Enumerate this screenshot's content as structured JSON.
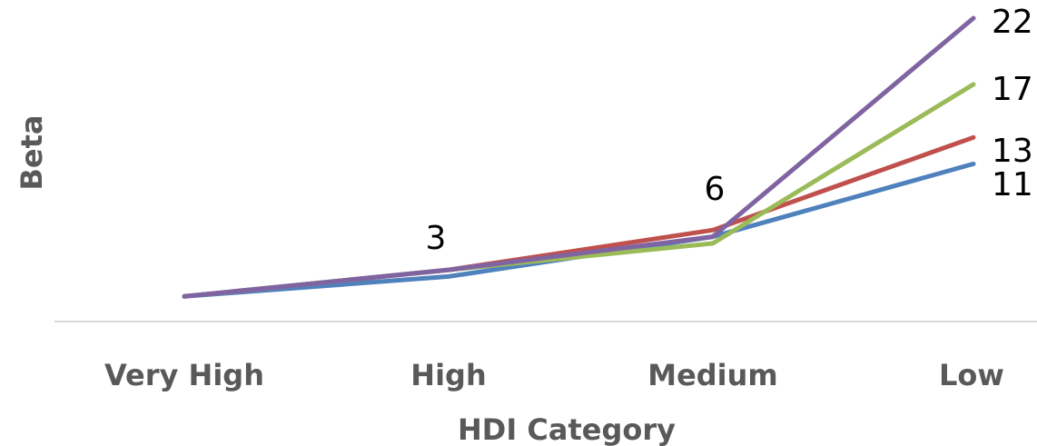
{
  "chart_data": {
    "type": "line",
    "title": "",
    "xlabel": "HDI Category",
    "ylabel": "Beta",
    "categories": [
      "Very High",
      "High",
      "Medium",
      "Low"
    ],
    "series": [
      {
        "color": "#4F81BD",
        "values": [
          1,
          2.5,
          5.5,
          11
        ]
      },
      {
        "color": "#C0504D",
        "values": [
          1,
          3,
          6,
          13
        ]
      },
      {
        "color": "#9BBB59",
        "values": [
          1,
          3,
          5,
          17
        ]
      },
      {
        "color": "#8064A2",
        "values": [
          1,
          3,
          5.5,
          22
        ]
      }
    ],
    "data_labels": [
      {
        "category_index": 1,
        "text": "3"
      },
      {
        "category_index": 2,
        "text": "6"
      },
      {
        "category_index": 3,
        "text": "22"
      },
      {
        "category_index": 3,
        "text": "17"
      },
      {
        "category_index": 3,
        "text": "13"
      },
      {
        "category_index": 3,
        "text": "11"
      }
    ],
    "ylim": [
      -2,
      22
    ],
    "grid": false,
    "legend": "none",
    "axis_color": "#D9D9D9"
  }
}
